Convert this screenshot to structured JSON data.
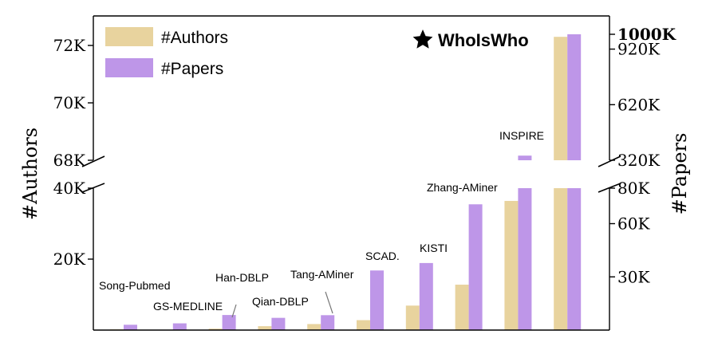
{
  "chart_data": {
    "type": "bar",
    "ylabel_left": "#Authors",
    "ylabel_right": "#Papers",
    "legend": {
      "position": "top-left",
      "entries": [
        {
          "name": "#Authors",
          "color": "#E8D39E"
        },
        {
          "name": "#Papers",
          "color": "#BE96E8"
        }
      ]
    },
    "badge": {
      "icon": "star-icon",
      "text": "WhoIsWho"
    },
    "axis_break": true,
    "left_axis": {
      "lower_range": [
        0,
        40000
      ],
      "upper_range": [
        68000,
        72500
      ],
      "ticks": [
        {
          "value": 20000,
          "label": "20K"
        },
        {
          "value": 40000,
          "label": "40K"
        },
        {
          "value": 68000,
          "label": "68K"
        },
        {
          "value": 70000,
          "label": "70K"
        },
        {
          "value": 72000,
          "label": "72K"
        }
      ]
    },
    "right_axis": {
      "lower_range": [
        0,
        80000
      ],
      "upper_range": [
        320000,
        1000000
      ],
      "ticks": [
        {
          "value": 30000,
          "label": "30K",
          "bold": false
        },
        {
          "value": 60000,
          "label": "60K",
          "bold": false
        },
        {
          "value": 80000,
          "label": "80K",
          "bold": false
        },
        {
          "value": 320000,
          "label": "320K",
          "bold": false
        },
        {
          "value": 620000,
          "label": "620K",
          "bold": false
        },
        {
          "value": 920000,
          "label": "920K",
          "bold": false
        },
        {
          "value": 1000000,
          "label": "1000K",
          "bold": true
        }
      ]
    },
    "categories": [
      "Song-Pubmed",
      "GS-MEDLINE",
      "Han-DBLP",
      "Qian-DBLP",
      "Tang-AMiner",
      "SCAD.",
      "KISTI",
      "Zhang-AMiner",
      "INSPIRE",
      "WhoIsWho"
    ],
    "series": [
      {
        "name": "#Authors",
        "axis": "left",
        "color": "#E8D39E",
        "values": [
          200,
          100,
          400,
          1100,
          1700,
          2800,
          6900,
          12800,
          36400,
          72300
        ]
      },
      {
        "name": "#Papers",
        "axis": "right",
        "color": "#BE96E8",
        "values": [
          3000,
          3800,
          8500,
          6900,
          8400,
          33600,
          37800,
          70900,
          345000,
          1000000
        ]
      }
    ]
  }
}
